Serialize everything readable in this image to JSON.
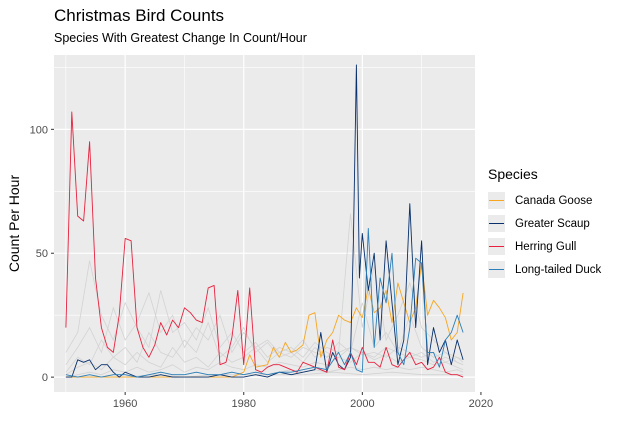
{
  "chart_data": {
    "type": "line",
    "title": "Christmas Bird Counts",
    "subtitle": "Species With Greatest Change In Count/Hour",
    "xlabel": "",
    "ylabel": "Count Per Hour",
    "xlim": [
      1948,
      2019
    ],
    "ylim": [
      -6,
      130
    ],
    "xticks": [
      1960,
      1980,
      2000,
      2020
    ],
    "yticks": [
      0,
      50,
      100
    ],
    "xtick_labels": [
      "1960",
      "1980",
      "2000",
      "2020"
    ],
    "ytick_labels": [
      "0",
      "50",
      "100"
    ],
    "grid": true,
    "legend": {
      "title": "Species",
      "position": "right"
    },
    "background_series_color": "#d3d3d3",
    "background_series": [
      {
        "x": [
          1950,
          1952,
          1954,
          1956,
          1958,
          1960,
          1962,
          1964,
          1966,
          1968,
          1970,
          1972,
          1974,
          1976,
          1978,
          1980,
          1982,
          1984,
          1986,
          1988,
          1990,
          1992,
          1994,
          1996,
          1998,
          2000,
          2002,
          2004,
          2006,
          2008,
          2010,
          2012,
          2014,
          2016,
          2017
        ],
        "values": [
          10,
          18,
          47,
          25,
          15,
          30,
          20,
          12,
          35,
          18,
          22,
          15,
          28,
          12,
          18,
          10,
          14,
          8,
          12,
          10,
          15,
          8,
          12,
          10,
          12,
          10,
          8,
          12,
          10,
          8,
          10,
          6,
          8,
          6,
          5
        ]
      },
      {
        "x": [
          1950,
          1952,
          1954,
          1956,
          1958,
          1960,
          1962,
          1964,
          1966,
          1968,
          1970,
          1972,
          1974,
          1976,
          1978,
          1980,
          1982,
          1984,
          1986,
          1988,
          1990,
          1992,
          1994,
          1996,
          1998,
          2000,
          2002,
          2004,
          2006,
          2008,
          2010,
          2012,
          2014,
          2016,
          2017
        ],
        "values": [
          5,
          12,
          20,
          10,
          28,
          15,
          22,
          34,
          18,
          25,
          12,
          20,
          15,
          25,
          10,
          18,
          12,
          15,
          10,
          12,
          8,
          14,
          10,
          8,
          12,
          9,
          10,
          8,
          12,
          10,
          8,
          10,
          6,
          8,
          7
        ]
      },
      {
        "x": [
          1950,
          1952,
          1954,
          1956,
          1958,
          1960,
          1962,
          1964,
          1966,
          1968,
          1970,
          1972,
          1974,
          1976,
          1978,
          1980,
          1982,
          1984,
          1986,
          1988,
          1990,
          1992,
          1994,
          1996,
          1998,
          2000,
          2002,
          2004,
          2006,
          2008,
          2010,
          2012,
          2014,
          2016,
          2017
        ],
        "values": [
          2,
          8,
          5,
          15,
          8,
          12,
          6,
          18,
          10,
          8,
          15,
          10,
          22,
          8,
          12,
          20,
          10,
          14,
          8,
          10,
          6,
          12,
          8,
          10,
          66,
          20,
          45,
          15,
          25,
          38,
          20,
          15,
          10,
          8,
          6
        ]
      },
      {
        "x": [
          1950,
          1952,
          1954,
          1956,
          1958,
          1960,
          1962,
          1964,
          1966,
          1968,
          1970,
          1972,
          1974,
          1976,
          1978,
          1980,
          1982,
          1984,
          1986,
          1988,
          1990,
          1992,
          1994,
          1996,
          1998,
          2000,
          2002,
          2004,
          2006,
          2008,
          2010,
          2012,
          2014,
          2016,
          2017
        ],
        "values": [
          1,
          4,
          6,
          3,
          8,
          5,
          10,
          6,
          4,
          12,
          6,
          8,
          4,
          10,
          6,
          8,
          12,
          6,
          10,
          8,
          12,
          10,
          8,
          14,
          10,
          30,
          12,
          18,
          10,
          25,
          12,
          8,
          10,
          6,
          5
        ]
      },
      {
        "x": [
          1950,
          1952,
          1954,
          1956,
          1958,
          1960,
          1962,
          1964,
          1966,
          1968,
          1970,
          1972,
          1974,
          1976,
          1978,
          1980,
          1982,
          1984,
          1986,
          1988,
          1990,
          1992,
          1994,
          1996,
          1998,
          2000,
          2002,
          2004,
          2006,
          2008,
          2010,
          2012,
          2014,
          2016,
          2017
        ],
        "values": [
          0,
          1,
          2,
          1,
          3,
          2,
          4,
          2,
          3,
          5,
          2,
          4,
          3,
          6,
          4,
          3,
          5,
          4,
          6,
          5,
          4,
          6,
          5,
          8,
          6,
          10,
          7,
          9,
          6,
          8,
          7,
          5,
          6,
          4,
          3
        ]
      },
      {
        "x": [
          1950,
          1952,
          1954,
          1956,
          1958,
          1960,
          1962,
          1964,
          1966,
          1968,
          1970,
          1972,
          1974,
          1976,
          1978,
          1980,
          1982,
          1984,
          1986,
          1988,
          1990,
          1992,
          1994,
          1996,
          1998,
          2000,
          2002,
          2004,
          2006,
          2008,
          2010,
          2012,
          2014,
          2016,
          2017
        ],
        "values": [
          0,
          0,
          1,
          0,
          1,
          1,
          0,
          1,
          2,
          1,
          1,
          2,
          1,
          1,
          2,
          1,
          2,
          1,
          2,
          3,
          2,
          3,
          2,
          3,
          4,
          3,
          4,
          3,
          4,
          3,
          4,
          3,
          2,
          3,
          2
        ]
      },
      {
        "x": [
          1950,
          1955,
          1960,
          1965,
          1970,
          1975,
          1980,
          1985,
          1990,
          1995,
          2000,
          2005,
          2010,
          2015,
          2017
        ],
        "values": [
          0,
          0,
          0,
          1,
          0,
          1,
          1,
          1,
          1,
          2,
          1,
          2,
          1,
          1,
          1
        ]
      }
    ],
    "series": [
      {
        "name": "Canada Goose",
        "color": "#f5a623",
        "x": [
          1950,
          1952,
          1954,
          1956,
          1958,
          1960,
          1962,
          1964,
          1966,
          1968,
          1970,
          1972,
          1974,
          1976,
          1978,
          1980,
          1981,
          1982,
          1984,
          1985,
          1986,
          1987,
          1988,
          1989,
          1990,
          1991,
          1992,
          1993,
          1994,
          1995,
          1996,
          1997,
          1998,
          1999,
          2000,
          2001,
          2002,
          2003,
          2004,
          2005,
          2006,
          2007,
          2008,
          2009,
          2010,
          2011,
          2012,
          2013,
          2014,
          2015,
          2016,
          2017
        ],
        "values": [
          0,
          0,
          0,
          0,
          0,
          0,
          0,
          0,
          0,
          0,
          0,
          0,
          0,
          0,
          0,
          2,
          9,
          4,
          5,
          12,
          8,
          14,
          10,
          11,
          13,
          25,
          26,
          8,
          15,
          18,
          25,
          23,
          22,
          28,
          24,
          36,
          26,
          28,
          35,
          22,
          38,
          30,
          22,
          28,
          46,
          25,
          31,
          28,
          24,
          15,
          18,
          34
        ]
      },
      {
        "name": "Greater Scaup",
        "color": "#08306b",
        "x": [
          1950,
          1951,
          1952,
          1953,
          1954,
          1955,
          1956,
          1957,
          1958,
          1959,
          1960,
          1962,
          1964,
          1966,
          1968,
          1970,
          1972,
          1974,
          1976,
          1978,
          1980,
          1982,
          1984,
          1986,
          1988,
          1990,
          1992,
          1993,
          1994,
          1995,
          1996,
          1997,
          1998,
          1998.5,
          1999,
          1999.5,
          2000,
          2001,
          2002,
          2003,
          2004,
          2005,
          2006,
          2007,
          2008,
          2009,
          2010,
          2011,
          2012,
          2013,
          2014,
          2015,
          2016,
          2017
        ],
        "values": [
          0,
          0,
          7,
          6,
          7,
          3,
          5,
          5,
          2,
          0,
          2,
          0,
          0,
          1,
          0,
          0,
          0,
          0,
          1,
          0,
          0,
          1,
          0,
          2,
          1,
          2,
          3,
          18,
          2,
          10,
          5,
          3,
          8,
          55,
          126,
          40,
          58,
          35,
          50,
          15,
          55,
          30,
          5,
          15,
          70,
          20,
          55,
          5,
          20,
          10,
          15,
          5,
          15,
          7
        ]
      },
      {
        "name": "Herring Gull",
        "color": "#e6223e",
        "x": [
          1950,
          1951,
          1952,
          1953,
          1954,
          1955,
          1956,
          1957,
          1958,
          1959,
          1960,
          1961,
          1962,
          1963,
          1964,
          1965,
          1966,
          1967,
          1968,
          1969,
          1970,
          1971,
          1972,
          1973,
          1974,
          1975,
          1976,
          1977,
          1978,
          1979,
          1980,
          1981,
          1982,
          1983,
          1984,
          1985,
          1986,
          1987,
          1988,
          1989,
          1990,
          1991,
          1992,
          1993,
          1994,
          1995,
          1996,
          1997,
          1998,
          1999,
          2000,
          2001,
          2002,
          2003,
          2004,
          2005,
          2006,
          2007,
          2008,
          2009,
          2010,
          2011,
          2012,
          2013,
          2014,
          2015,
          2016,
          2017
        ],
        "values": [
          20,
          107,
          65,
          63,
          95,
          40,
          20,
          12,
          10,
          25,
          56,
          55,
          20,
          12,
          8,
          13,
          22,
          17,
          23,
          20,
          28,
          26,
          23,
          22,
          36,
          37,
          5,
          6,
          16,
          35,
          5,
          36,
          3,
          2,
          4,
          5,
          5,
          4,
          3,
          2,
          6,
          5,
          4,
          3,
          2,
          15,
          4,
          3,
          10,
          5,
          12,
          6,
          6,
          4,
          12,
          5,
          4,
          7,
          10,
          5,
          6,
          3,
          4,
          8,
          2,
          1,
          1,
          0
        ]
      },
      {
        "name": "Long-tailed Duck",
        "color": "#2c7fb8",
        "x": [
          1950,
          1952,
          1954,
          1956,
          1958,
          1960,
          1962,
          1964,
          1966,
          1968,
          1970,
          1972,
          1974,
          1976,
          1978,
          1980,
          1982,
          1984,
          1986,
          1988,
          1990,
          1992,
          1994,
          1996,
          1997,
          1998,
          1999,
          2000,
          2001,
          2002,
          2003,
          2004,
          2005,
          2006,
          2007,
          2008,
          2009,
          2010,
          2011,
          2012,
          2013,
          2014,
          2015,
          2016,
          2017
        ],
        "values": [
          1,
          0,
          1,
          0,
          1,
          1,
          0,
          1,
          2,
          1,
          1,
          2,
          1,
          1,
          2,
          1,
          2,
          1,
          2,
          2,
          3,
          4,
          3,
          10,
          5,
          10,
          3,
          2,
          60,
          12,
          40,
          30,
          50,
          10,
          5,
          20,
          48,
          46,
          10,
          10,
          4,
          15,
          18,
          25,
          18
        ]
      }
    ]
  }
}
